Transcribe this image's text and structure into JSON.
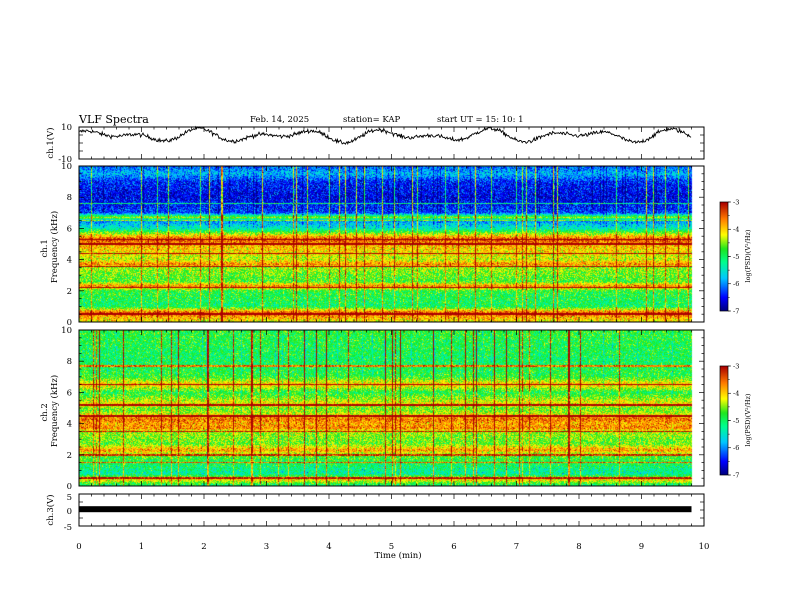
{
  "header": {
    "title": "VLF Spectra",
    "date": "Feb. 14, 2025",
    "station": "station= KAP",
    "start": "start  UT =   15: 10: 1"
  },
  "chart_data": [
    {
      "type": "line",
      "panel": "ch1-waveform",
      "ylabel": "ch.1(V)",
      "ylim": [
        -10,
        10
      ],
      "yticks": [
        "10",
        "-10"
      ],
      "xlim": [
        0,
        10
      ],
      "x_min_end": 9.8,
      "approx_wave": {
        "mean": 4.6,
        "amplitude": 4.5,
        "noise": 1.6
      }
    },
    {
      "type": "heatmap",
      "panel": "ch1-spectrogram",
      "ylabel": "ch.1\nFrequency (kHz)",
      "ylim": [
        0,
        10
      ],
      "yticks": [
        "0",
        "2",
        "4",
        "6",
        "8",
        "10"
      ],
      "xlim": [
        0,
        10
      ],
      "x_data_end": 9.8,
      "z_label": "log(PSD)(V²/Hz)",
      "z_range": [
        -7,
        -3
      ],
      "z_ticks": [
        "-3",
        "-4",
        "-5",
        "-6",
        "-7"
      ],
      "level_profile": [
        [
          0,
          -4.2
        ],
        [
          0.6,
          -3.4
        ],
        [
          1,
          -5.0
        ],
        [
          2,
          -4.8
        ],
        [
          2.3,
          -3.6
        ],
        [
          2.6,
          -4.7
        ],
        [
          3.5,
          -4.4
        ],
        [
          3.7,
          -3.6
        ],
        [
          4,
          -4.3
        ],
        [
          5,
          -3.8
        ],
        [
          5.3,
          -3.3
        ],
        [
          6,
          -5.4
        ],
        [
          6.5,
          -6.0
        ],
        [
          6.7,
          -4.4
        ],
        [
          7,
          -6.3
        ],
        [
          8,
          -6.6
        ],
        [
          9,
          -6.4
        ],
        [
          9.5,
          -5.8
        ],
        [
          10,
          -6.2
        ]
      ],
      "lines_khz": [
        0.5,
        2.2,
        3.55,
        4.4,
        5.0,
        5.3,
        6.5,
        7.6
      ]
    },
    {
      "type": "heatmap",
      "panel": "ch2-spectrogram",
      "ylabel": "ch.2\nFrequency (kHz)",
      "ylim": [
        0,
        10
      ],
      "yticks": [
        "0",
        "2",
        "4",
        "6",
        "8",
        "10"
      ],
      "xlim": [
        0,
        10
      ],
      "x_data_end": 9.8,
      "z_label": "log(PSD)(V²/Hz)",
      "z_range": [
        -7,
        -3
      ],
      "z_ticks": [
        "-3",
        "-4",
        "-5",
        "-6",
        "-7"
      ],
      "level_profile": [
        [
          0,
          -5.2
        ],
        [
          0.4,
          -4.0
        ],
        [
          0.8,
          -5.3
        ],
        [
          1.5,
          -4.9
        ],
        [
          2,
          -4.6
        ],
        [
          2.3,
          -3.7
        ],
        [
          2.7,
          -4.6
        ],
        [
          3.5,
          -4.4
        ],
        [
          3.7,
          -3.6
        ],
        [
          4,
          -3.8
        ],
        [
          4.3,
          -3.5
        ],
        [
          4.7,
          -4.4
        ],
        [
          5,
          -4.6
        ],
        [
          5.2,
          -4.0
        ],
        [
          6,
          -4.9
        ],
        [
          6.5,
          -3.9
        ],
        [
          7,
          -4.8
        ],
        [
          8,
          -5.0
        ],
        [
          9,
          -4.9
        ],
        [
          10,
          -4.8
        ]
      ],
      "lines_khz": [
        0.5,
        1.5,
        2.0,
        3.5,
        4.5,
        5.2,
        6.5,
        7.7
      ]
    },
    {
      "type": "line",
      "panel": "ch3-waveform",
      "ylabel": "ch.3(V)",
      "ylim": [
        -5,
        5
      ],
      "yticks": [
        "5",
        "0",
        "-5"
      ],
      "xlim": [
        0,
        10
      ],
      "x_data_end": 9.8,
      "constant_value": 0.1,
      "xlabel": "Time (min)",
      "xticks": [
        "0",
        "1",
        "2",
        "3",
        "4",
        "5",
        "6",
        "7",
        "8",
        "9",
        "10"
      ]
    }
  ]
}
